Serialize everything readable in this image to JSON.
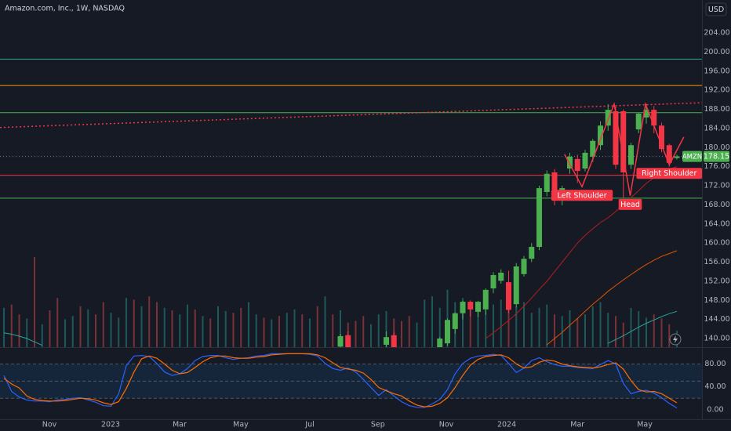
{
  "chart_data": {
    "type": "candlestick",
    "title": "Amazon.com, Inc., 1W, NASDAQ",
    "currency": "USD",
    "symbol": "AMZN",
    "last_price": 178.15,
    "up_color": "#4caf50",
    "down_color": "#f23645",
    "xticks": [
      {
        "value": 5.95,
        "label": "Nov"
      },
      {
        "value": 13.95,
        "label": "2023"
      },
      {
        "value": 22.97,
        "label": "Mar"
      },
      {
        "value": 30.97,
        "label": "May"
      },
      {
        "value": 40.0,
        "label": "Jul"
      },
      {
        "value": 48.9,
        "label": "Sep"
      },
      {
        "value": 57.85,
        "label": "Nov"
      },
      {
        "value": 65.75,
        "label": "2024"
      },
      {
        "value": 75.0,
        "label": "Mar"
      },
      {
        "value": 83.8,
        "label": "May"
      }
    ],
    "ylim": [
      138.2,
      210.9
    ],
    "yticks": [
      {
        "value": 140,
        "label": "140.00"
      },
      {
        "value": 144,
        "label": "144.00"
      },
      {
        "value": 148,
        "label": "148.00"
      },
      {
        "value": 152,
        "label": "152.00"
      },
      {
        "value": 156,
        "label": "156.00"
      },
      {
        "value": 160,
        "label": "160.00"
      },
      {
        "value": 164,
        "label": "164.00"
      },
      {
        "value": 168,
        "label": "168.00"
      },
      {
        "value": 172,
        "label": "172.00"
      },
      {
        "value": 176,
        "label": "176.00"
      },
      {
        "value": 180,
        "label": "180.00"
      },
      {
        "value": 184,
        "label": "184.00"
      },
      {
        "value": 188,
        "label": "188.00"
      },
      {
        "value": 192,
        "label": "192.00"
      },
      {
        "value": 196,
        "label": "196.00"
      },
      {
        "value": 200,
        "label": "200.00"
      },
      {
        "value": 204,
        "label": "204.00"
      }
    ],
    "ohlc": [
      null,
      null,
      null,
      null,
      null,
      null,
      null,
      null,
      null,
      null,
      null,
      null,
      null,
      null,
      null,
      null,
      null,
      null,
      null,
      null,
      null,
      null,
      null,
      null,
      null,
      null,
      null,
      null,
      null,
      null,
      null,
      null,
      null,
      null,
      null,
      null,
      null,
      null,
      null,
      null,
      null,
      null,
      null,
      null,
      [
        138.3,
        141,
        137.5,
        140.5
      ],
      [
        140.7,
        141.5,
        137,
        138.2
      ],
      null,
      null,
      null,
      null,
      [
        138.7,
        141.5,
        137,
        140.3
      ],
      [
        140.7,
        141.4,
        137,
        138.2
      ],
      null,
      null,
      null,
      null,
      null,
      [
        138,
        140.3,
        137,
        140
      ],
      [
        139,
        144.2,
        138.5,
        143.9
      ],
      [
        142,
        145.5,
        141,
        145.3
      ],
      [
        145.3,
        147.9,
        144,
        147.7
      ],
      [
        147.7,
        148,
        144.6,
        146.1
      ],
      [
        145.6,
        147.9,
        144.5,
        147.7
      ],
      [
        146.1,
        150.5,
        145,
        150.2
      ],
      [
        150.5,
        153.9,
        149.5,
        153.3
      ],
      [
        152.1,
        154.5,
        151.5,
        153.8
      ],
      [
        151.8,
        154.2,
        145.3,
        146
      ],
      [
        147.2,
        155.8,
        146.5,
        155.1
      ],
      [
        153.5,
        157.3,
        153,
        156.7
      ],
      [
        156.7,
        160,
        156,
        159.2
      ],
      [
        159.2,
        172,
        158.5,
        171.5
      ],
      [
        170.7,
        175.2,
        169.8,
        174.5
      ],
      [
        174.8,
        175.5,
        167.9,
        169.9
      ],
      [
        169.9,
        172,
        167.9,
        171.5
      ],
      [
        175.6,
        178.9,
        174.5,
        178.1
      ],
      [
        177.6,
        178.5,
        172.6,
        175.1
      ],
      [
        175.6,
        179.5,
        175,
        178.9
      ],
      [
        178.1,
        181.8,
        177,
        181.4
      ],
      [
        180.5,
        185.5,
        179.5,
        184.6
      ],
      [
        184.6,
        189.1,
        183.5,
        187.9
      ],
      [
        187.6,
        188.6,
        175.5,
        176.4
      ],
      [
        187.6,
        188,
        169.4,
        174.8
      ],
      [
        176.4,
        181,
        175.5,
        180.5
      ],
      [
        183.8,
        187.3,
        183,
        187.1
      ],
      [
        186.3,
        189.1,
        185,
        187.9
      ],
      [
        187.9,
        188.7,
        183,
        184.6
      ],
      [
        184.6,
        185.2,
        179,
        179.7
      ],
      [
        180.5,
        180.8,
        176,
        176.8
      ],
      [
        177.8,
        178.5,
        177.5,
        178.15
      ]
    ],
    "volume": [
      48,
      52,
      40,
      35,
      110,
      28,
      45,
      60,
      34,
      38,
      50,
      46,
      40,
      55,
      42,
      36,
      60,
      58,
      50,
      62,
      55,
      48,
      45,
      40,
      52,
      46,
      38,
      35,
      50,
      44,
      42,
      48,
      55,
      40,
      36,
      34,
      38,
      42,
      46,
      40,
      35,
      50,
      62,
      40,
      45,
      30,
      32,
      38,
      28,
      40,
      44,
      35,
      32,
      38,
      30,
      58,
      62,
      48,
      70,
      55,
      60,
      50,
      48,
      45,
      52,
      58,
      46,
      50,
      55,
      42,
      48,
      52,
      40,
      38,
      45,
      35,
      40,
      50,
      55,
      42,
      38,
      30,
      48,
      44,
      36,
      40,
      35,
      28,
      20
    ],
    "volume_up": [
      true,
      false,
      false,
      true,
      false,
      true,
      false,
      false,
      true,
      true,
      false,
      true,
      false,
      false,
      true,
      true,
      true,
      false,
      true,
      false,
      false,
      true,
      false,
      true,
      true,
      false,
      true,
      false,
      true,
      true,
      false,
      false,
      true,
      true,
      false,
      true,
      false,
      true,
      true,
      false,
      true,
      false,
      true,
      false,
      true,
      false,
      false,
      false,
      true,
      true,
      true,
      false,
      false,
      false,
      true,
      true,
      true,
      true,
      true,
      true,
      true,
      false,
      true,
      true,
      true,
      true,
      false,
      true,
      true,
      true,
      true,
      true,
      false,
      true,
      true,
      false,
      true,
      true,
      true,
      true,
      false,
      false,
      true,
      true,
      true,
      false,
      false,
      false,
      true
    ],
    "moving_averages": [
      {
        "color": "#b71c1c",
        "values": [
          null,
          null,
          null,
          null,
          null,
          null,
          null,
          null,
          null,
          null,
          null,
          null,
          null,
          null,
          null,
          null,
          null,
          null,
          null,
          null,
          null,
          null,
          null,
          null,
          null,
          null,
          null,
          null,
          null,
          null,
          null,
          null,
          null,
          null,
          null,
          null,
          null,
          null,
          null,
          null,
          null,
          null,
          null,
          null,
          null,
          null,
          null,
          null,
          null,
          null,
          null,
          null,
          null,
          null,
          null,
          null,
          null,
          null,
          null,
          null,
          null,
          null,
          null,
          140,
          141.2,
          142.5,
          143.8,
          145.2,
          146.8,
          148.5,
          150.3,
          152,
          154,
          156,
          158,
          160,
          161.6,
          163,
          164.3,
          165.3,
          166.6,
          168,
          169.5,
          171,
          172.5,
          173.7,
          174.7,
          175.5,
          176
        ]
      },
      {
        "color": "#e65100",
        "values": [
          null,
          null,
          null,
          null,
          null,
          null,
          null,
          null,
          null,
          null,
          null,
          null,
          null,
          null,
          null,
          null,
          null,
          null,
          null,
          null,
          null,
          null,
          null,
          null,
          null,
          null,
          null,
          null,
          null,
          null,
          null,
          null,
          null,
          null,
          null,
          null,
          null,
          null,
          null,
          null,
          null,
          null,
          null,
          null,
          null,
          null,
          null,
          null,
          null,
          null,
          null,
          null,
          null,
          null,
          null,
          null,
          null,
          null,
          null,
          null,
          null,
          null,
          null,
          null,
          null,
          null,
          null,
          null,
          null,
          null,
          null,
          138.7,
          140,
          141.3,
          142.8,
          144.2,
          145.7,
          147.2,
          148.5,
          149.9,
          151.1,
          152.3,
          153.4,
          154.5,
          155.5,
          156.4,
          157.2,
          157.8,
          158.4
        ]
      },
      {
        "color": "#26a69a",
        "values": [
          141.2,
          140.9,
          140.5,
          140.0,
          139.3,
          138.6,
          null,
          null,
          null,
          null,
          null,
          null,
          null,
          null,
          null,
          null,
          null,
          null,
          null,
          null,
          null,
          null,
          null,
          null,
          null,
          null,
          null,
          null,
          null,
          null,
          null,
          null,
          null,
          null,
          null,
          null,
          null,
          null,
          null,
          null,
          null,
          null,
          null,
          null,
          null,
          null,
          null,
          null,
          null,
          null,
          null,
          null,
          null,
          null,
          null,
          null,
          null,
          null,
          null,
          null,
          null,
          null,
          null,
          null,
          null,
          null,
          null,
          null,
          null,
          null,
          null,
          null,
          null,
          null,
          null,
          null,
          null,
          null,
          null,
          139,
          139.8,
          140.6,
          141.5,
          142.4,
          143.2,
          143.9,
          144.6,
          145.2,
          145.7
        ]
      }
    ],
    "levels": [
      {
        "value": 198.5,
        "color": "#26a69a"
      },
      {
        "value": 193,
        "color": "#ff9800"
      },
      {
        "value": 187.3,
        "color": "#4caf50"
      },
      {
        "value": 174.2,
        "color": "#f23645"
      },
      {
        "value": 169.4,
        "color": "#4caf50"
      }
    ],
    "trendline": {
      "color": "#f23645",
      "points": [
        [
          -0.5,
          184.2
        ],
        [
          95,
          189.6
        ]
      ]
    },
    "pattern": {
      "color": "#f23645",
      "points": [
        [
          73.3,
          178.6
        ],
        [
          75.6,
          171.8
        ],
        [
          79.8,
          189.1
        ],
        [
          81.9,
          169.9
        ],
        [
          83.9,
          189.1
        ],
        [
          87.0,
          176.4
        ],
        [
          88.9,
          182.2
        ]
      ],
      "labels": [
        "Left Shoulder",
        "Head",
        "Right Shoulder"
      ]
    },
    "oscillator": {
      "ylim": [
        -16.8,
        109.5
      ],
      "yticks": [
        {
          "value": 0,
          "label": "0.00"
        },
        {
          "value": 40,
          "label": "40.00"
        },
        {
          "value": 80,
          "label": "80.00"
        }
      ],
      "bands": [
        20,
        50,
        80
      ],
      "series": [
        {
          "color": "#2962ff",
          "values": [
            60,
            32,
            22,
            17,
            15,
            15,
            14,
            17,
            18,
            20,
            21,
            17,
            13,
            7,
            6,
            28,
            77,
            94,
            95,
            93,
            81,
            66,
            60,
            63,
            72,
            86,
            93,
            95,
            95,
            91,
            88,
            90,
            91,
            94,
            95,
            98,
            98,
            98,
            98,
            98,
            97,
            94,
            81,
            72,
            69,
            73,
            66,
            53,
            39,
            25,
            35,
            24,
            14,
            7,
            4,
            4,
            10,
            18,
            35,
            63,
            81,
            90,
            94,
            95,
            97,
            95,
            81,
            65,
            73,
            86,
            91,
            84,
            79,
            76,
            76,
            74,
            73,
            72,
            79,
            86,
            80,
            46,
            28,
            32,
            34,
            29,
            21,
            11,
            3
          ]
        },
        {
          "color": "#ff6d00",
          "values": [
            55,
            45,
            38,
            24,
            18,
            16,
            15,
            15,
            16,
            18,
            20,
            19,
            17,
            12,
            9,
            14,
            37,
            66,
            89,
            94,
            90,
            80,
            69,
            63,
            65,
            74,
            84,
            91,
            94,
            94,
            91,
            90,
            90,
            92,
            93,
            96,
            97,
            98,
            98,
            98,
            98,
            96,
            91,
            82,
            74,
            71,
            69,
            64,
            53,
            39,
            33,
            28,
            24,
            15,
            8,
            5,
            6,
            11,
            21,
            39,
            60,
            78,
            88,
            93,
            95,
            96,
            91,
            80,
            73,
            75,
            83,
            87,
            85,
            80,
            77,
            75,
            74,
            73,
            75,
            79,
            82,
            71,
            51,
            35,
            31,
            32,
            28,
            20,
            12
          ]
        }
      ]
    }
  }
}
